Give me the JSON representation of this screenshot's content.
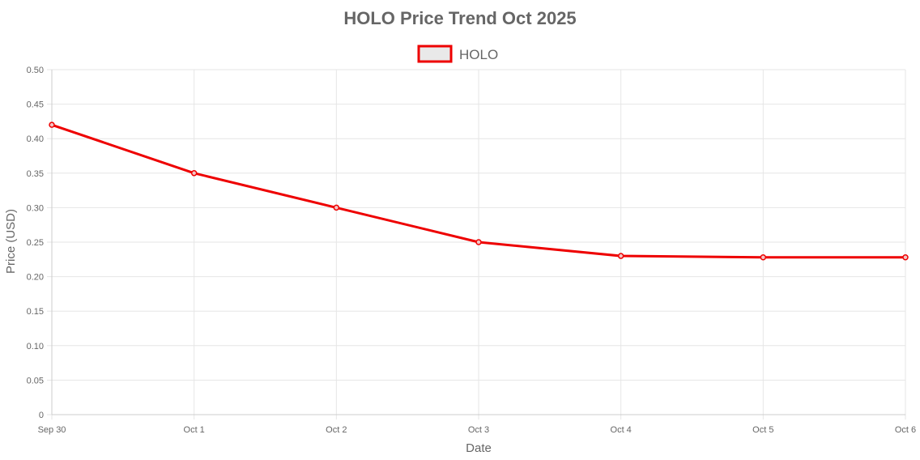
{
  "chart_data": {
    "type": "line",
    "title": "HOLO Price Trend Oct 2025",
    "xlabel": "Date",
    "ylabel": "Price (USD)",
    "categories": [
      "Sep 30",
      "Oct 1",
      "Oct 2",
      "Oct 3",
      "Oct 4",
      "Oct 5",
      "Oct 6"
    ],
    "series": [
      {
        "name": "HOLO",
        "values": [
          0.42,
          0.35,
          0.3,
          0.25,
          0.23,
          0.228,
          0.228
        ],
        "color": "#ee0000"
      }
    ],
    "ylim": [
      0,
      0.5
    ],
    "yticks": [
      "0",
      "0.05",
      "0.10",
      "0.15",
      "0.20",
      "0.25",
      "0.30",
      "0.35",
      "0.40",
      "0.45",
      "0.50"
    ],
    "grid": true,
    "legend": "top-center"
  }
}
